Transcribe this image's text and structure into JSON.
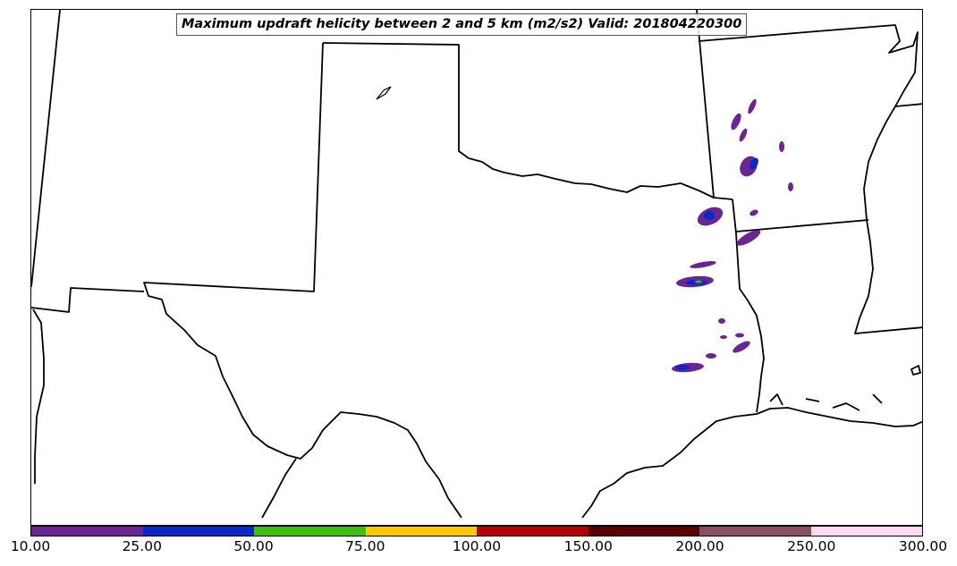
{
  "map": {
    "title": "Maximum updraft helicity between 2 and 5 km (m2/s2) Valid: 201804220300",
    "field": "updraft helicity",
    "region": "Southern Plains"
  },
  "colorbar": {
    "colors": [
      "#6a2493",
      "#0a28c8",
      "#3fbf10",
      "#ffc800",
      "#b40000",
      "#5a0000",
      "#8a5060",
      "#ffd8f4"
    ],
    "labels": [
      "10.00",
      "25.00",
      "50.00",
      "75.00",
      "100.00",
      "150.00",
      "200.00",
      "250.00",
      "300.00"
    ]
  }
}
